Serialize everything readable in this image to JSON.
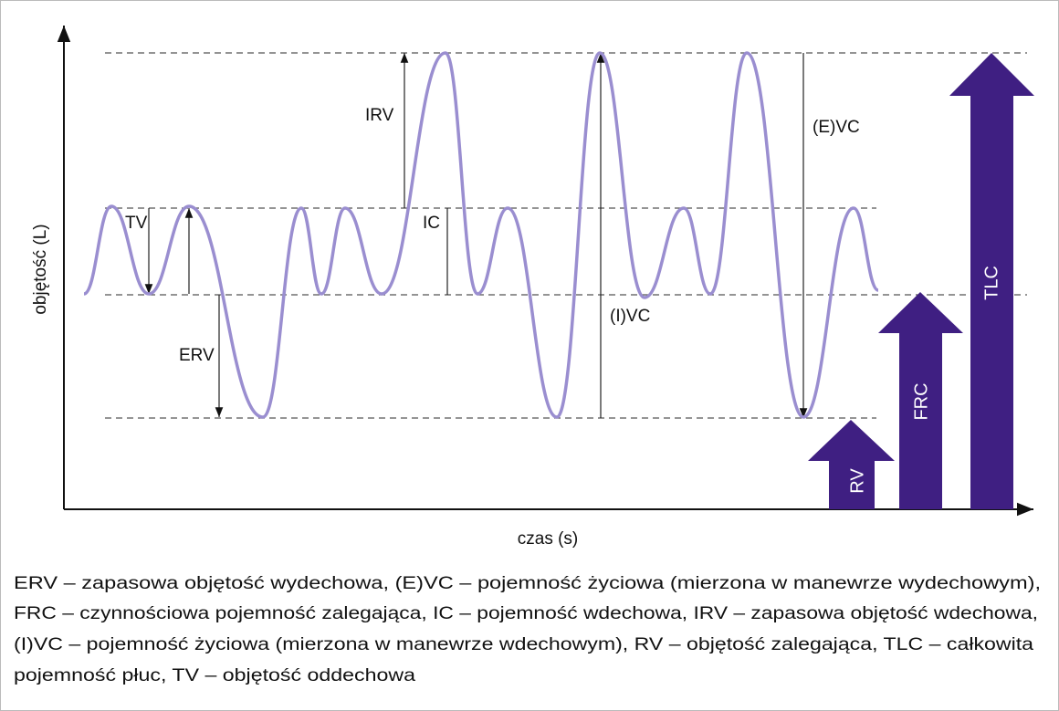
{
  "axes": {
    "y_label": "objętość (L)",
    "x_label": "czas (s)"
  },
  "annotations": {
    "tv": "TV",
    "erv": "ERV",
    "irv": "IRV",
    "ic": "IC",
    "ivc": "(I)VC",
    "evc": "(E)VC"
  },
  "bars": {
    "rv": "RV",
    "frc": "FRC",
    "tlc": "TLC"
  },
  "caption": {
    "lines": [
      "ERV – zapasowa objętość wydechowa, (E)VC – pojemność życiowa (mierzona w manewrze wydechowym),",
      "FRC – czynnościowa pojemność zalegająca, IC – pojemność wdechowa, IRV – zapasowa objętość wdechowa,",
      "(I)VC – pojemność życiowa (mierzona w manewrze wdechowym), RV – objętość zalegająca, TLC – całkowita",
      "pojemność płuc, TV – objętość oddechowa"
    ]
  }
}
